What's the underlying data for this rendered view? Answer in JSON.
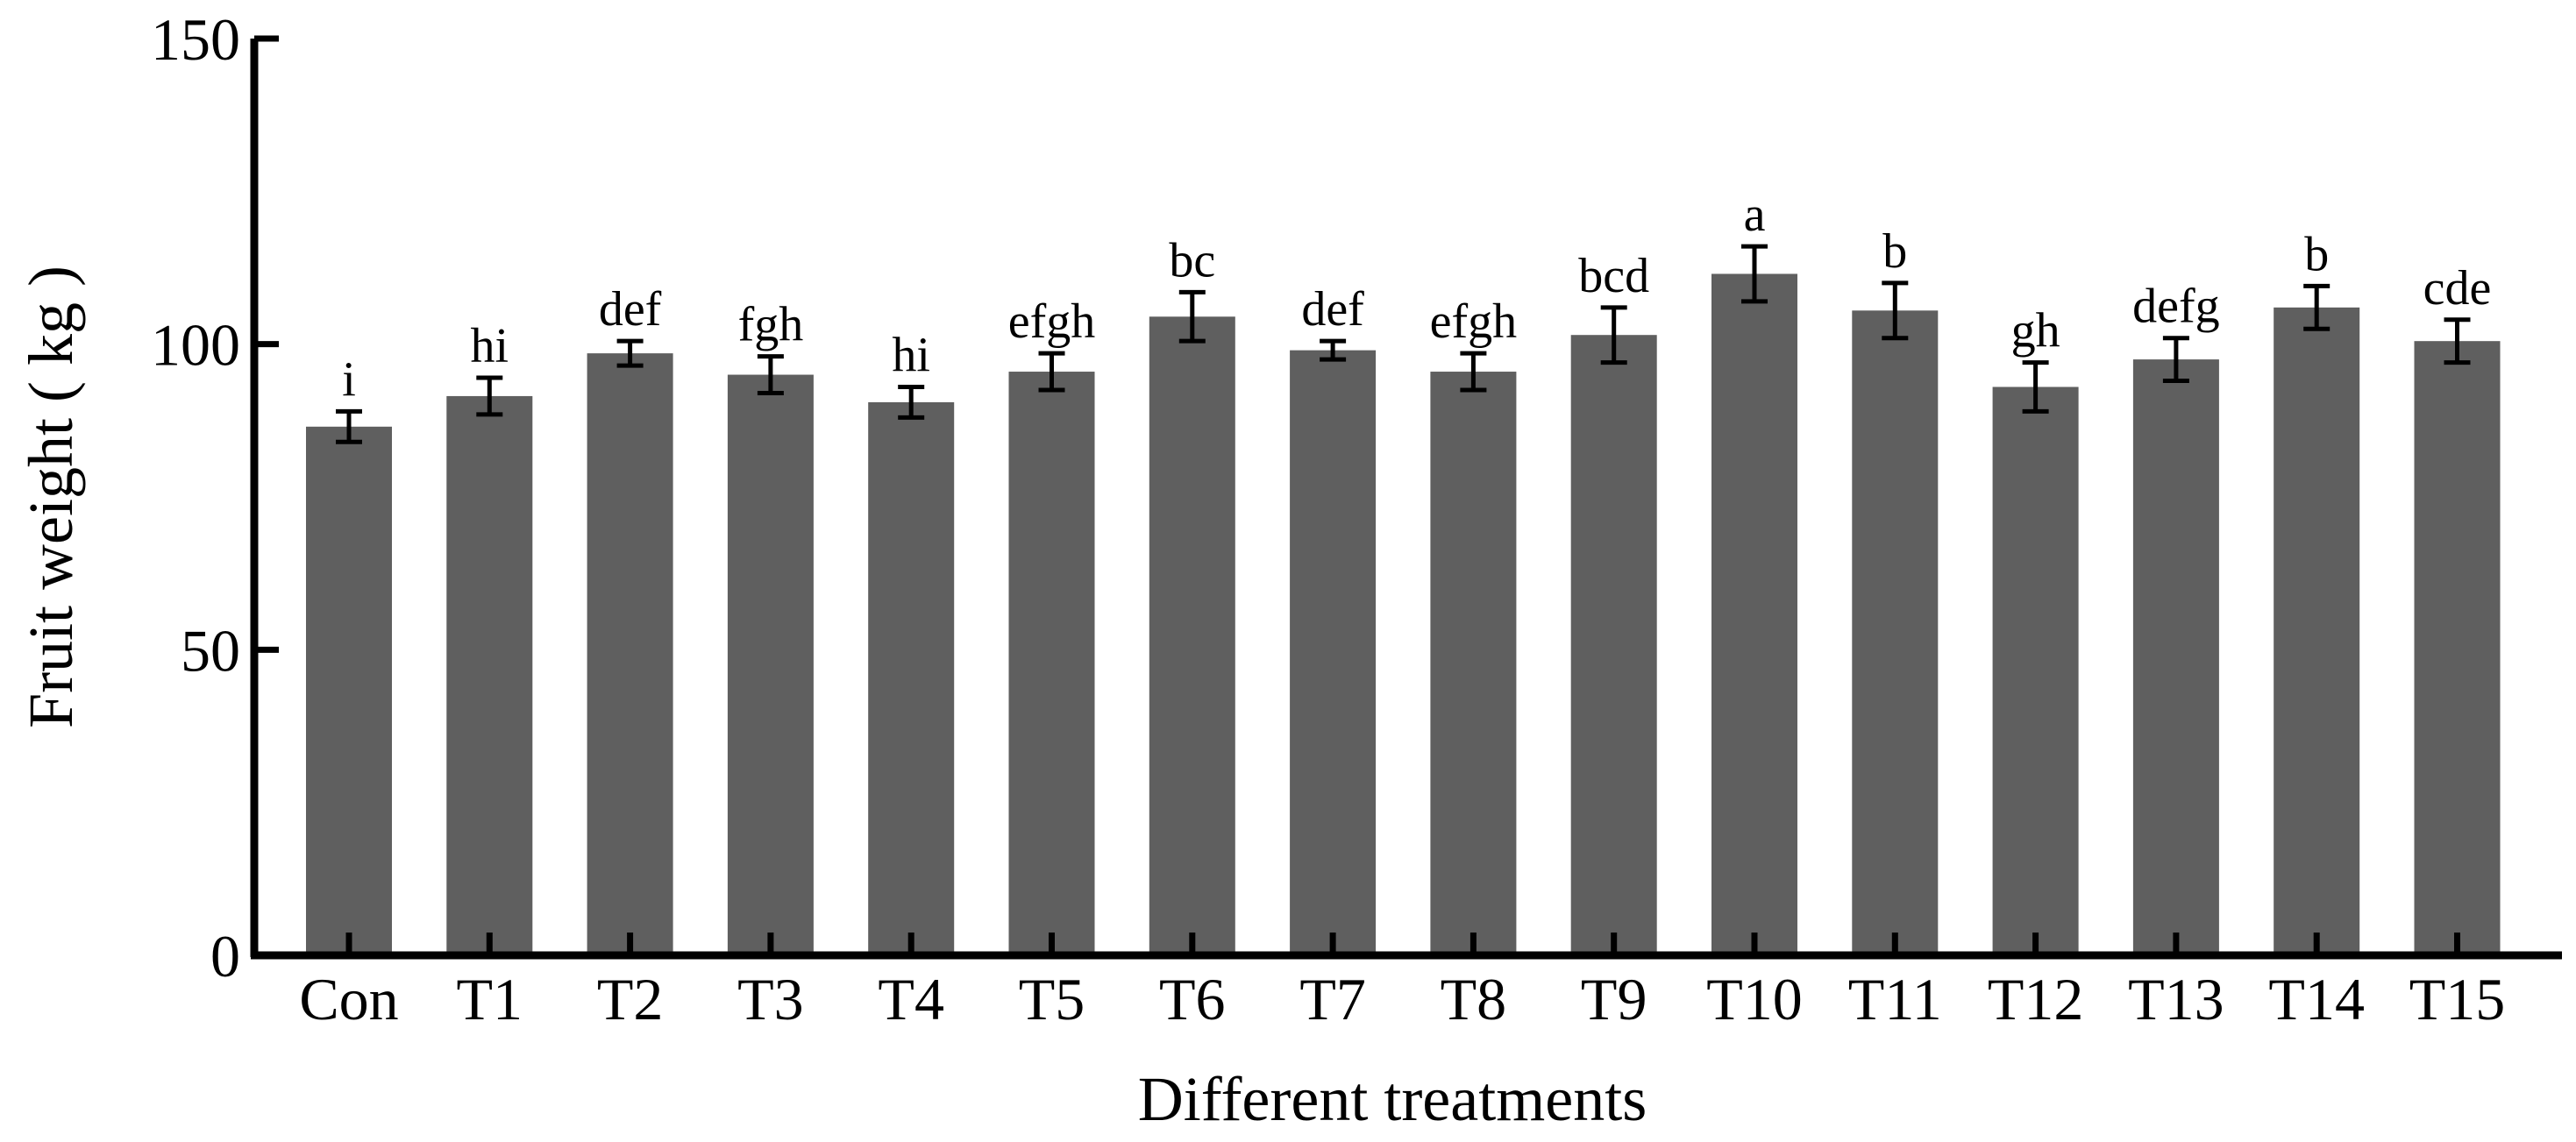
{
  "chart_data": {
    "type": "bar",
    "title": "",
    "xlabel": "Different treatments",
    "ylabel": "Fruit weight ( kg )",
    "ylim": [
      0,
      150
    ],
    "yticks": [
      0,
      50,
      100,
      150
    ],
    "yticklabels": [
      "0",
      "50",
      "100",
      "150"
    ],
    "grid": false,
    "categories": [
      "Con",
      "T1",
      "T2",
      "T3",
      "T4",
      "T5",
      "T6",
      "T7",
      "T8",
      "T9",
      "T10",
      "T11",
      "T12",
      "T13",
      "T14",
      "T15"
    ],
    "values": [
      86.5,
      91.5,
      98.5,
      95,
      90.5,
      95.5,
      104.5,
      99,
      95.5,
      101.5,
      111.5,
      105.5,
      93,
      97.5,
      106,
      100.5
    ],
    "errors": [
      2.5,
      3,
      2,
      3,
      2.5,
      3,
      4,
      1.5,
      3,
      4.5,
      4.5,
      4.5,
      4,
      3.5,
      3.5,
      3.5
    ],
    "significance_labels": [
      "i",
      "hi",
      "def",
      "fgh",
      "hi",
      "efgh",
      "bc",
      "def",
      "efgh",
      "bcd",
      "a",
      "b",
      "gh",
      "defg",
      "b",
      "cde"
    ],
    "bar_color": "#5f5f5f"
  }
}
